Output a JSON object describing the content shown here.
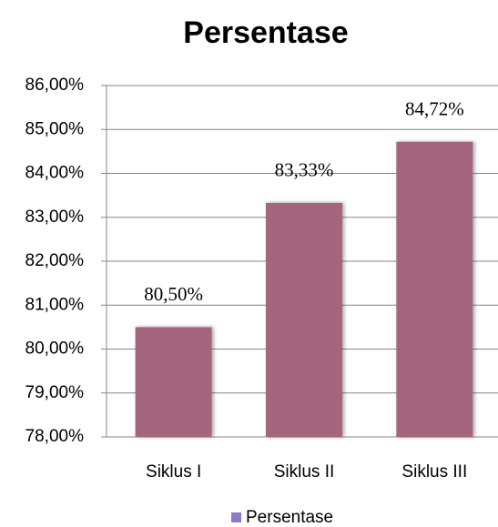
{
  "chart_data": {
    "type": "bar",
    "title": "Persentase",
    "categories": [
      "Siklus I",
      "Siklus II",
      "Siklus III"
    ],
    "series": [
      {
        "name": "Persentase",
        "color": "#a5657f",
        "values": [
          80.5,
          83.33,
          84.72
        ],
        "value_labels": [
          "80,50%",
          "83,33%",
          "84,72%"
        ]
      }
    ],
    "legend_color": "#8e7cc3",
    "ylim": [
      78,
      86
    ],
    "yticks": [
      {
        "value": 78,
        "label": "78,00%"
      },
      {
        "value": 79,
        "label": "79,00%"
      },
      {
        "value": 80,
        "label": "80,00%"
      },
      {
        "value": 81,
        "label": "81,00%"
      },
      {
        "value": 82,
        "label": "82,00%"
      },
      {
        "value": 83,
        "label": "83,00%"
      },
      {
        "value": 84,
        "label": "84,00%"
      },
      {
        "value": 85,
        "label": "85,00%"
      },
      {
        "value": 86,
        "label": "86,00%"
      }
    ],
    "grid": true,
    "legend": "bottom"
  }
}
